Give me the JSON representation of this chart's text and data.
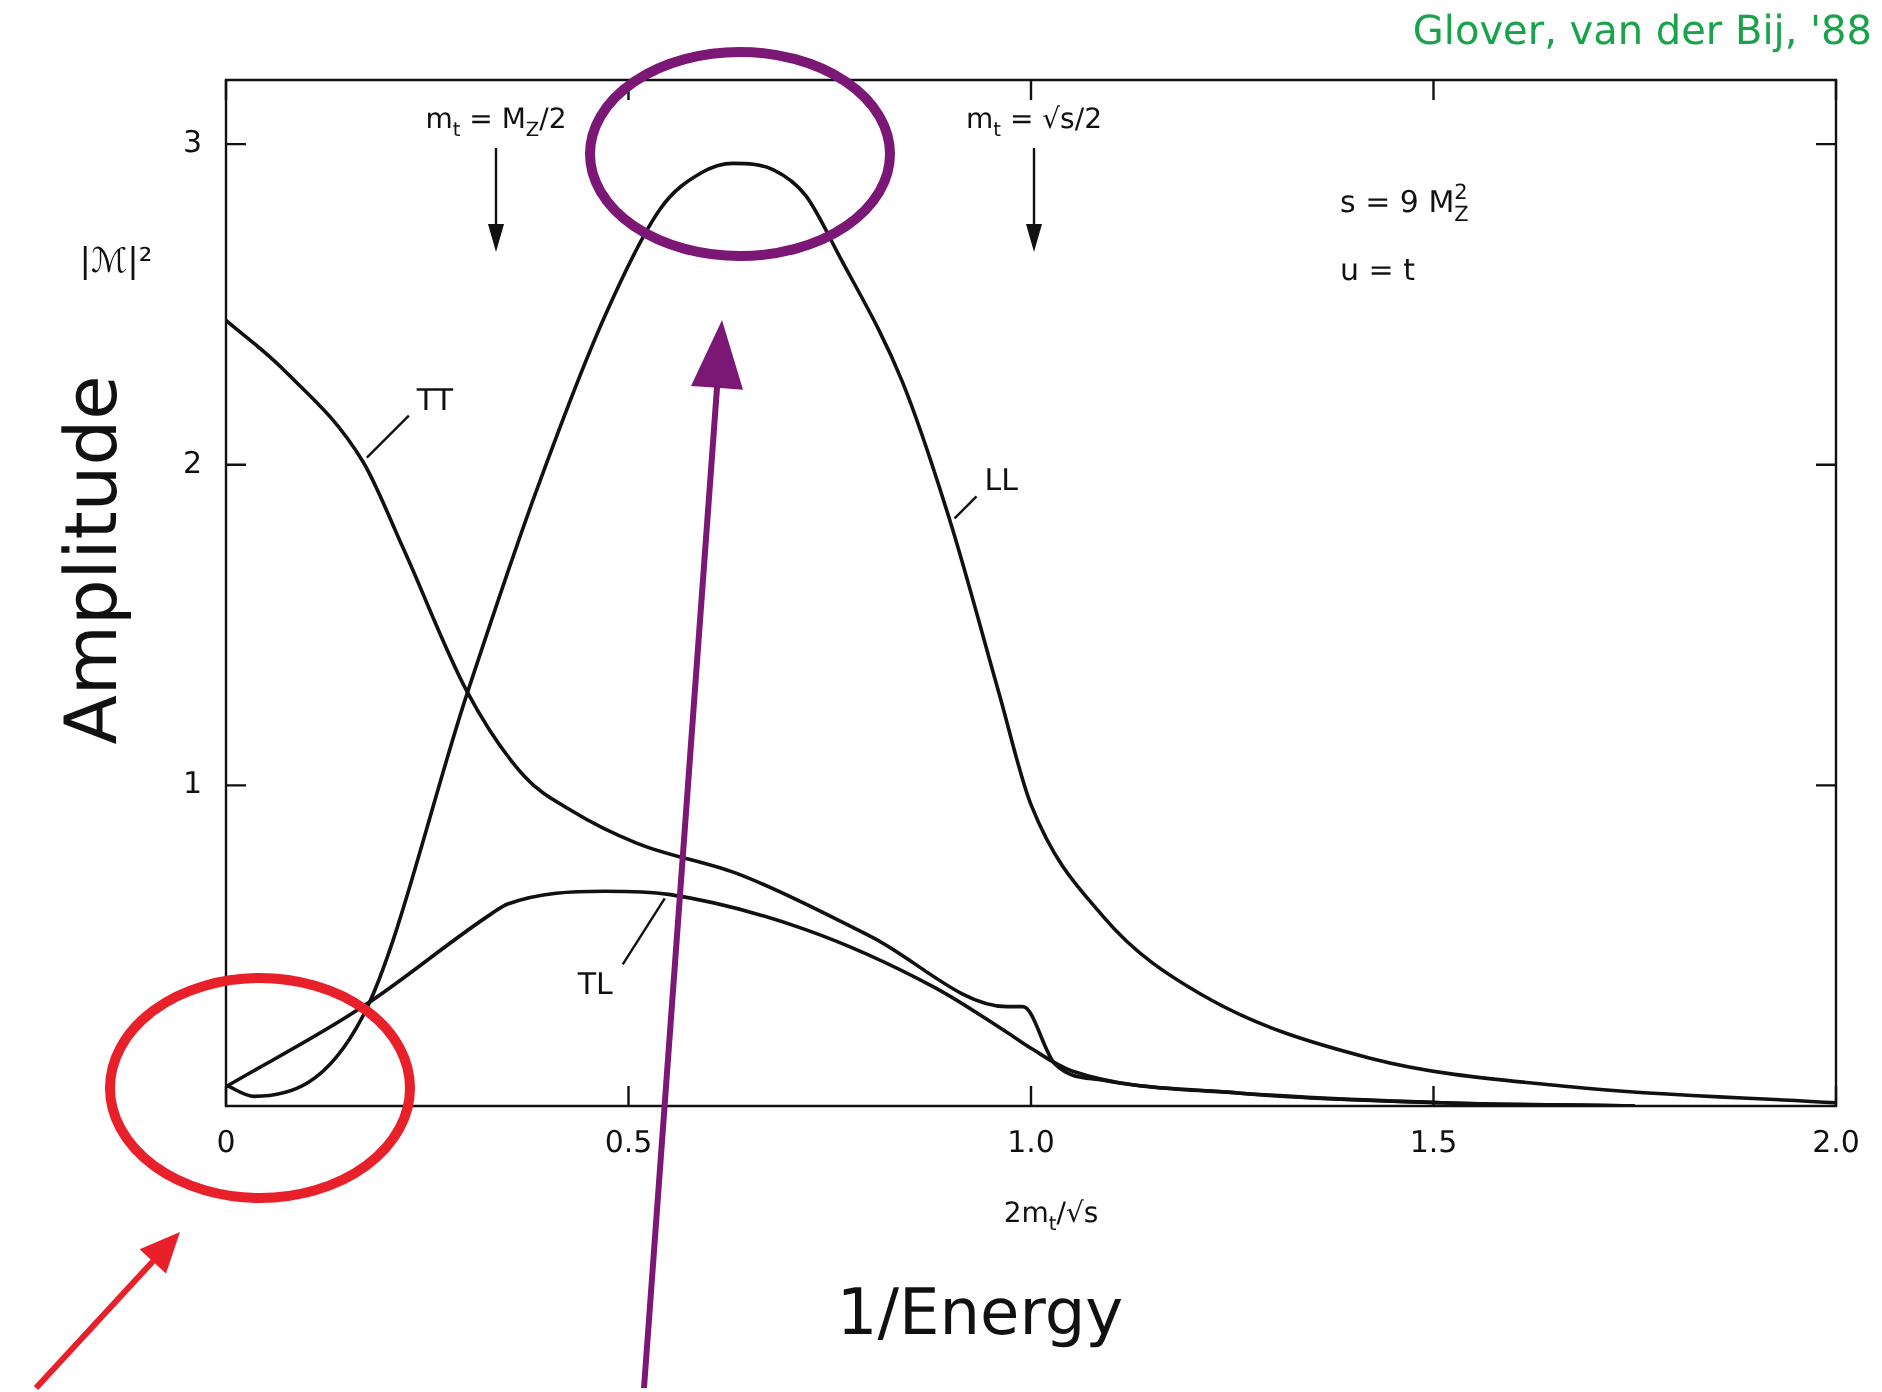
{
  "chart_data": {
    "type": "line",
    "xlabel": "2m$_{t}$/√s",
    "ylabel": "Amplitude",
    "xlim": [
      0,
      2
    ],
    "ylim": [
      0,
      3.2
    ],
    "xticks": [
      0,
      0.5,
      {
        "value": 1,
        "label": "1.0"
      },
      1.5,
      {
        "value": 2,
        "label": "2.0"
      }
    ],
    "yticks": [
      1,
      2,
      3
    ],
    "marker": "none",
    "line_style": "solid",
    "legend": false,
    "series": [
      {
        "name": "TT",
        "color": "#111111",
        "x": [
          0,
          0.07,
          0.17,
          0.22,
          0.3,
          0.37,
          0.43,
          0.51,
          0.64,
          0.8,
          0.97,
          0.99,
          1.03,
          1.09,
          1.26,
          1.51,
          1.75
        ],
        "values": [
          2.45,
          2.3,
          2.01,
          1.74,
          1.29,
          1.03,
          0.92,
          0.82,
          0.72,
          0.53,
          0.31,
          0.31,
          0.13,
          0.08,
          0.04,
          0.01,
          0
        ]
      },
      {
        "name": "TL",
        "color": "#111111",
        "x": [
          0,
          0.17,
          0.33,
          0.35,
          0.47,
          0.55,
          0.72,
          0.88,
          0.97,
          1,
          1.05,
          1.26,
          1.51,
          1.75
        ],
        "values": [
          0.06,
          0.31,
          0.6,
          0.63,
          0.67,
          0.66,
          0.55,
          0.37,
          0.23,
          0.18,
          0.11,
          0.04,
          0.01,
          0
        ]
      },
      {
        "name": "LL",
        "color": "#111111",
        "x": [
          0,
          0.035,
          0.17,
          0.3,
          0.38,
          0.47,
          0.54,
          0.59,
          0.63,
          0.68,
          0.72,
          0.76,
          0.84,
          0.9,
          0.96,
          1,
          1.09,
          1.21,
          1.42,
          1.67,
          2
        ],
        "values": [
          0.065,
          0.03,
          0.28,
          1.29,
          1.88,
          2.46,
          2.8,
          2.91,
          2.94,
          2.92,
          2.84,
          2.66,
          2.26,
          1.82,
          1.29,
          0.94,
          0.59,
          0.35,
          0.15,
          0.06,
          0.01
        ]
      }
    ],
    "annotations": [
      "m$_{t}$ = M$_{Z}$/2",
      "m$_{t}$ = √s/2",
      "s = 9 M$_{Z}$$^{2}$",
      "u = t",
      "|ℳ|²",
      "1/Energy",
      "Glover, van der Bij, '88"
    ]
  }
}
